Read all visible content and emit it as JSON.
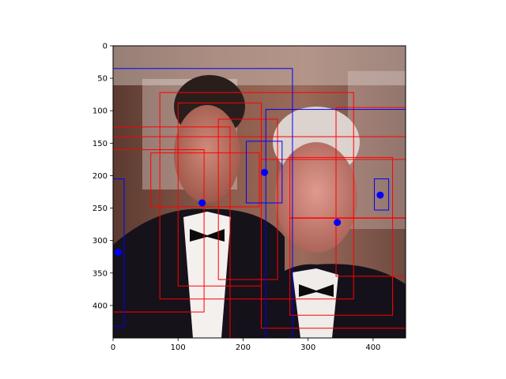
{
  "chart_data": {
    "type": "scatter",
    "title": "",
    "xlabel": "",
    "ylabel": "",
    "xlim": [
      0,
      450
    ],
    "ylim": [
      450,
      0
    ],
    "x_ticks": [
      0,
      100,
      200,
      300,
      400
    ],
    "y_ticks": [
      0,
      50,
      100,
      150,
      200,
      250,
      300,
      350,
      400
    ],
    "x_tick_labels": [
      "0",
      "100",
      "200",
      "300",
      "400"
    ],
    "y_tick_labels": [
      "0",
      "50",
      "100",
      "150",
      "200",
      "250",
      "300",
      "350",
      "400"
    ],
    "grid": false,
    "background": "photograph of two men in tuxedos",
    "colors": {
      "red_boxes": "#ff0000",
      "blue_boxes": "#0000ff",
      "points": "#0000ff"
    },
    "red_boxes": [
      {
        "x0": 72,
        "y0": 72,
        "x1": 370,
        "y1": 390
      },
      {
        "x0": 100,
        "y0": 88,
        "x1": 228,
        "y1": 370
      },
      {
        "x0": 0,
        "y0": 125,
        "x1": 180,
        "y1": 140
      },
      {
        "x0": 58,
        "y0": 165,
        "x1": 225,
        "y1": 248
      },
      {
        "x0": 0,
        "y0": 160,
        "x1": 140,
        "y1": 410
      },
      {
        "x0": 162,
        "y0": 113,
        "x1": 253,
        "y1": 360
      },
      {
        "x0": 180,
        "y0": 140,
        "x1": 450,
        "y1": 450
      },
      {
        "x0": 228,
        "y0": 175,
        "x1": 450,
        "y1": 435
      },
      {
        "x0": 272,
        "y0": 172,
        "x1": 430,
        "y1": 415
      },
      {
        "x0": 343,
        "y0": 95,
        "x1": 450,
        "y1": 355
      },
      {
        "x0": 272,
        "y0": 265,
        "x1": 450,
        "y1": 265
      }
    ],
    "blue_boxes": [
      {
        "x0": 0,
        "y0": 35,
        "x1": 276,
        "y1": 450
      },
      {
        "x0": 0,
        "y0": 205,
        "x1": 17,
        "y1": 432
      },
      {
        "x0": 205,
        "y0": 147,
        "x1": 260,
        "y1": 242
      },
      {
        "x0": 235,
        "y0": 98,
        "x1": 450,
        "y1": 450
      },
      {
        "x0": 402,
        "y0": 205,
        "x1": 424,
        "y1": 253
      }
    ],
    "points": [
      {
        "x": 8,
        "y": 318
      },
      {
        "x": 137,
        "y": 242
      },
      {
        "x": 233,
        "y": 195
      },
      {
        "x": 345,
        "y": 272
      },
      {
        "x": 411,
        "y": 230
      }
    ]
  }
}
